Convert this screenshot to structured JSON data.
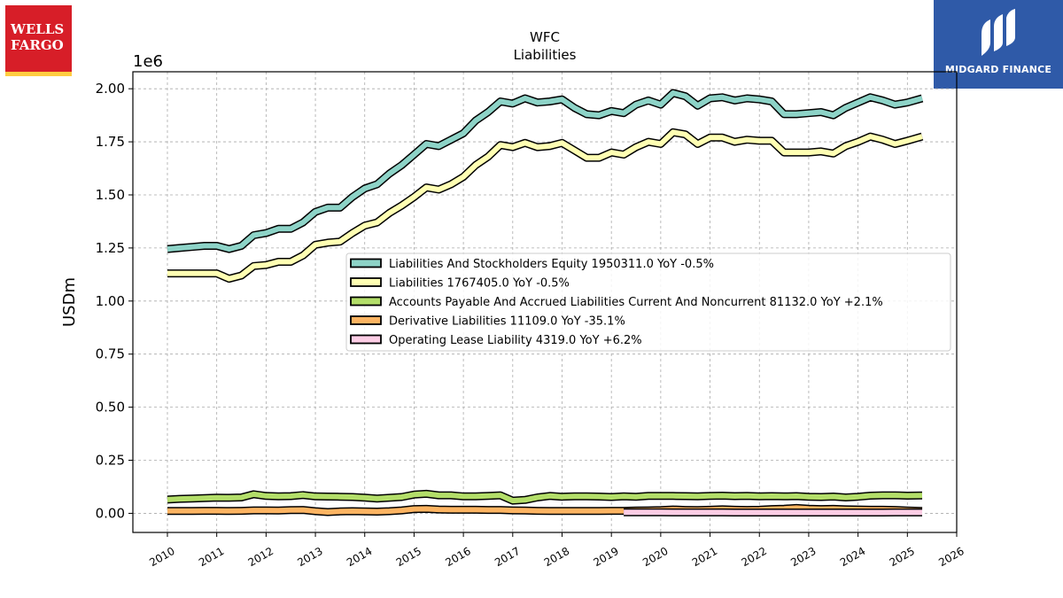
{
  "logos": {
    "left_line1": "WELLS",
    "left_line2": "FARGO",
    "right_text": "MIDGARD FINANCE"
  },
  "chart_data": {
    "type": "line",
    "title": "WFC",
    "subtitle": "Liabilities",
    "ylabel": "USDm",
    "y_scale_label": "1e6",
    "xlim": [
      2009.3,
      2026.0
    ],
    "ylim": [
      -0.09,
      2.08
    ],
    "x_ticks": [
      2010,
      2011,
      2012,
      2013,
      2014,
      2015,
      2016,
      2017,
      2018,
      2019,
      2020,
      2021,
      2022,
      2023,
      2024,
      2025,
      2026
    ],
    "y_ticks": [
      0.0,
      0.25,
      0.5,
      0.75,
      1.0,
      1.25,
      1.5,
      1.75,
      2.0
    ],
    "y_tick_labels": [
      "0.00",
      "0.25",
      "0.50",
      "0.75",
      "1.00",
      "1.25",
      "1.50",
      "1.75",
      "2.00"
    ],
    "grid": true,
    "legend_position": "center-right",
    "series": [
      {
        "name": "Liabilities And Stockholders Equity  1950311.0 YoY -0.5%",
        "color": "#8dd3c7",
        "x": [
          2010.0,
          2010.25,
          2010.5,
          2010.75,
          2011.0,
          2011.25,
          2011.5,
          2011.75,
          2012.0,
          2012.25,
          2012.5,
          2012.75,
          2013.0,
          2013.25,
          2013.5,
          2013.75,
          2014.0,
          2014.25,
          2014.5,
          2014.75,
          2015.0,
          2015.25,
          2015.5,
          2015.75,
          2016.0,
          2016.25,
          2016.5,
          2016.75,
          2017.0,
          2017.25,
          2017.5,
          2017.75,
          2018.0,
          2018.25,
          2018.5,
          2018.75,
          2019.0,
          2019.25,
          2019.5,
          2019.75,
          2020.0,
          2020.25,
          2020.5,
          2020.75,
          2021.0,
          2021.25,
          2021.5,
          2021.75,
          2022.0,
          2022.25,
          2022.5,
          2022.75,
          2023.0,
          2023.25,
          2023.5,
          2023.75,
          2024.0,
          2024.25,
          2024.5,
          2024.75,
          2025.0,
          2025.3
        ],
        "values": [
          1.245,
          1.25,
          1.255,
          1.26,
          1.26,
          1.245,
          1.26,
          1.31,
          1.32,
          1.34,
          1.34,
          1.37,
          1.42,
          1.44,
          1.44,
          1.49,
          1.53,
          1.55,
          1.6,
          1.64,
          1.69,
          1.74,
          1.73,
          1.76,
          1.79,
          1.85,
          1.89,
          1.94,
          1.93,
          1.955,
          1.935,
          1.94,
          1.95,
          1.91,
          1.88,
          1.875,
          1.895,
          1.885,
          1.925,
          1.945,
          1.925,
          1.98,
          1.965,
          1.92,
          1.955,
          1.96,
          1.945,
          1.955,
          1.95,
          1.94,
          1.88,
          1.88,
          1.885,
          1.89,
          1.875,
          1.91,
          1.935,
          1.96,
          1.945,
          1.925,
          1.935,
          1.955
        ]
      },
      {
        "name": "Liabilities  1767405.0 YoY -0.5%",
        "color": "#ffffb3",
        "x": [
          2010.0,
          2010.25,
          2010.5,
          2010.75,
          2011.0,
          2011.25,
          2011.5,
          2011.75,
          2012.0,
          2012.25,
          2012.5,
          2012.75,
          2013.0,
          2013.25,
          2013.5,
          2013.75,
          2014.0,
          2014.25,
          2014.5,
          2014.75,
          2015.0,
          2015.25,
          2015.5,
          2015.75,
          2016.0,
          2016.25,
          2016.5,
          2016.75,
          2017.0,
          2017.25,
          2017.5,
          2017.75,
          2018.0,
          2018.25,
          2018.5,
          2018.75,
          2019.0,
          2019.25,
          2019.5,
          2019.75,
          2020.0,
          2020.25,
          2020.5,
          2020.75,
          2021.0,
          2021.25,
          2021.5,
          2021.75,
          2022.0,
          2022.25,
          2022.5,
          2022.75,
          2023.0,
          2023.25,
          2023.5,
          2023.75,
          2024.0,
          2024.25,
          2024.5,
          2024.75,
          2025.0,
          2025.3
        ],
        "values": [
          1.13,
          1.13,
          1.13,
          1.13,
          1.13,
          1.105,
          1.12,
          1.165,
          1.17,
          1.185,
          1.185,
          1.215,
          1.265,
          1.275,
          1.28,
          1.32,
          1.355,
          1.37,
          1.415,
          1.45,
          1.49,
          1.535,
          1.525,
          1.55,
          1.585,
          1.64,
          1.68,
          1.735,
          1.725,
          1.745,
          1.725,
          1.73,
          1.745,
          1.71,
          1.675,
          1.675,
          1.7,
          1.69,
          1.725,
          1.75,
          1.74,
          1.795,
          1.785,
          1.74,
          1.77,
          1.77,
          1.75,
          1.76,
          1.755,
          1.755,
          1.7,
          1.7,
          1.7,
          1.705,
          1.695,
          1.73,
          1.75,
          1.775,
          1.76,
          1.74,
          1.755,
          1.775
        ]
      },
      {
        "name": "Accounts Payable And Accrued Liabilities Current And Noncurrent  81132.0 YoY +2.1%",
        "color": "#b3de69",
        "x": [
          2010.0,
          2010.25,
          2010.5,
          2010.75,
          2011.0,
          2011.25,
          2011.5,
          2011.75,
          2012.0,
          2012.25,
          2012.5,
          2012.75,
          2013.0,
          2013.25,
          2013.5,
          2013.75,
          2014.0,
          2014.25,
          2014.5,
          2014.75,
          2015.0,
          2015.25,
          2015.5,
          2015.75,
          2016.0,
          2016.25,
          2016.5,
          2016.75,
          2017.0,
          2017.25,
          2017.5,
          2017.75,
          2018.0,
          2018.25,
          2018.5,
          2018.75,
          2019.0,
          2019.25,
          2019.5,
          2019.75,
          2020.0,
          2020.25,
          2020.5,
          2020.75,
          2021.0,
          2021.25,
          2021.5,
          2021.75,
          2022.0,
          2022.25,
          2022.5,
          2022.75,
          2023.0,
          2023.25,
          2023.5,
          2023.75,
          2024.0,
          2024.25,
          2024.5,
          2024.75,
          2025.0,
          2025.3
        ],
        "values": [
          0.065,
          0.068,
          0.07,
          0.072,
          0.074,
          0.073,
          0.075,
          0.09,
          0.082,
          0.08,
          0.081,
          0.086,
          0.08,
          0.079,
          0.078,
          0.077,
          0.074,
          0.07,
          0.073,
          0.077,
          0.088,
          0.092,
          0.085,
          0.085,
          0.08,
          0.08,
          0.082,
          0.085,
          0.06,
          0.063,
          0.075,
          0.082,
          0.078,
          0.08,
          0.08,
          0.079,
          0.077,
          0.08,
          0.078,
          0.082,
          0.082,
          0.082,
          0.081,
          0.08,
          0.082,
          0.083,
          0.081,
          0.082,
          0.08,
          0.081,
          0.08,
          0.081,
          0.078,
          0.077,
          0.079,
          0.075,
          0.078,
          0.083,
          0.085,
          0.085,
          0.083,
          0.084
        ]
      },
      {
        "name": "Derivative Liabilities  11109.0 YoY -35.1%",
        "color": "#fdb462",
        "x": [
          2010.0,
          2010.25,
          2010.5,
          2010.75,
          2011.0,
          2011.25,
          2011.5,
          2011.75,
          2012.0,
          2012.25,
          2012.5,
          2012.75,
          2013.0,
          2013.25,
          2013.5,
          2013.75,
          2014.0,
          2014.25,
          2014.5,
          2014.75,
          2015.0,
          2015.25,
          2015.5,
          2015.75,
          2016.0,
          2016.25,
          2016.5,
          2016.75,
          2017.0,
          2017.25,
          2017.5,
          2017.75,
          2018.0,
          2018.25,
          2018.5,
          2018.75,
          2019.0,
          2019.25,
          2019.5,
          2019.75,
          2020.0,
          2020.25,
          2020.5,
          2020.75,
          2021.0,
          2021.25,
          2021.5,
          2021.75,
          2022.0,
          2022.25,
          2022.5,
          2022.75,
          2023.0,
          2023.25,
          2023.5,
          2023.75,
          2024.0,
          2024.25,
          2024.5,
          2024.75,
          2025.0,
          2025.3
        ],
        "values": [
          0.011,
          0.011,
          0.011,
          0.012,
          0.012,
          0.011,
          0.012,
          0.014,
          0.014,
          0.013,
          0.015,
          0.016,
          0.01,
          0.006,
          0.009,
          0.01,
          0.009,
          0.008,
          0.01,
          0.014,
          0.02,
          0.021,
          0.018,
          0.017,
          0.017,
          0.017,
          0.016,
          0.016,
          0.014,
          0.013,
          0.012,
          0.011,
          0.011,
          0.011,
          0.011,
          0.011,
          0.012,
          0.012,
          0.013,
          0.014,
          0.015,
          0.018,
          0.016,
          0.015,
          0.017,
          0.019,
          0.017,
          0.016,
          0.017,
          0.02,
          0.022,
          0.025,
          0.022,
          0.02,
          0.021,
          0.019,
          0.018,
          0.017,
          0.017,
          0.016,
          0.013,
          0.011
        ]
      },
      {
        "name": "Operating Lease Liability  4319.0 YoY +6.2%",
        "color": "#fccde5",
        "x": [
          2019.25,
          2019.5,
          2019.75,
          2020.0,
          2020.25,
          2020.5,
          2020.75,
          2021.0,
          2021.25,
          2021.5,
          2021.75,
          2022.0,
          2022.25,
          2022.5,
          2022.75,
          2023.0,
          2023.25,
          2023.5,
          2023.75,
          2024.0,
          2024.25,
          2024.5,
          2024.75,
          2025.0,
          2025.3
        ],
        "values": [
          0.0048,
          0.0047,
          0.0046,
          0.0046,
          0.0045,
          0.0044,
          0.0043,
          0.0043,
          0.0042,
          0.0041,
          0.0041,
          0.004,
          0.004,
          0.004,
          0.0039,
          0.0039,
          0.0039,
          0.004,
          0.004,
          0.0041,
          0.0041,
          0.0041,
          0.0042,
          0.0043,
          0.0043
        ]
      }
    ]
  }
}
